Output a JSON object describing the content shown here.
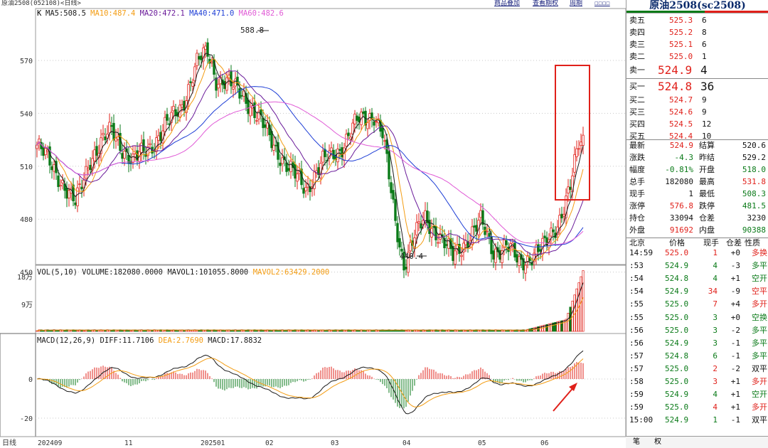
{
  "window": {
    "title": "原油2508(052108)<日线>",
    "links": [
      "商品叠加",
      "查看期权",
      "周期",
      "☐☐☐☐"
    ]
  },
  "main_chart": {
    "k_label": "K",
    "ma_legend": [
      {
        "text": "MA5:508.5",
        "color": "#1a1a1a"
      },
      {
        "text": "MA10:487.4",
        "color": "#f39c12"
      },
      {
        "text": "MA20:472.1",
        "color": "#6a1b9a"
      },
      {
        "text": "MA40:471.0",
        "color": "#1f3fd6"
      },
      {
        "text": "MA60:482.6",
        "color": "#e05ad6"
      }
    ],
    "y_ticks": [
      "570",
      "540",
      "510",
      "480",
      "450"
    ],
    "high_label": "588.8",
    "low_label": "440.4",
    "x_labels": [
      "202409",
      "11",
      "202501",
      "02",
      "03",
      "04",
      "05",
      "06"
    ],
    "period_label": "日线"
  },
  "volume_chart": {
    "legend": [
      {
        "text": "VOL(5,10)",
        "color": "#1a1a1a"
      },
      {
        "text": "VOLUME:182080.0000",
        "color": "#1a1a1a"
      },
      {
        "text": "MAVOL1:101055.8000",
        "color": "#1a1a1a"
      },
      {
        "text": "MAVOL2:63429.2000",
        "color": "#f39c12"
      }
    ],
    "y_ticks": [
      "18万",
      "9万"
    ]
  },
  "macd_chart": {
    "legend": [
      {
        "text": "MACD(12,26,9)",
        "color": "#1a1a1a"
      },
      {
        "text": "DIFF:11.7106",
        "color": "#1a1a1a"
      },
      {
        "text": "DEA:2.7690",
        "color": "#f39c12"
      },
      {
        "text": "MACD:17.8832",
        "color": "#1a1a1a"
      }
    ],
    "y_ticks": [
      "0",
      "-20"
    ]
  },
  "quote": {
    "title": "原油2508(sc2508)",
    "asks": [
      {
        "label": "卖五",
        "price": "525.3",
        "vol": "6"
      },
      {
        "label": "卖四",
        "price": "525.2",
        "vol": "8"
      },
      {
        "label": "卖三",
        "price": "525.1",
        "vol": "6"
      },
      {
        "label": "卖二",
        "price": "525.0",
        "vol": "1"
      },
      {
        "label": "卖一",
        "price": "524.9",
        "vol": "4"
      }
    ],
    "bids": [
      {
        "label": "买一",
        "price": "524.8",
        "vol": "36"
      },
      {
        "label": "买二",
        "price": "524.7",
        "vol": "9"
      },
      {
        "label": "买三",
        "price": "524.6",
        "vol": "9"
      },
      {
        "label": "买四",
        "price": "524.5",
        "vol": "12"
      },
      {
        "label": "买五",
        "price": "524.4",
        "vol": "10"
      }
    ],
    "stats": [
      {
        "l1": "最新",
        "v1": "524.9",
        "c1": "red",
        "l2": "结算",
        "v2": "520.6",
        "c2": "blk"
      },
      {
        "l1": "涨跌",
        "v1": "-4.3",
        "c1": "grn",
        "l2": "昨结",
        "v2": "529.2",
        "c2": "blk"
      },
      {
        "l1": "幅度",
        "v1": "-0.81%",
        "c1": "grn",
        "l2": "开盘",
        "v2": "518.0",
        "c2": "grn"
      },
      {
        "l1": "总手",
        "v1": "182080",
        "c1": "blk",
        "l2": "最高",
        "v2": "531.8",
        "c2": "red"
      },
      {
        "l1": "现手",
        "v1": "1",
        "c1": "blk",
        "l2": "最低",
        "v2": "508.3",
        "c2": "grn"
      },
      {
        "l1": "涨停",
        "v1": "576.8",
        "c1": "red",
        "l2": "跌停",
        "v2": "481.5",
        "c2": "grn"
      },
      {
        "l1": "持仓",
        "v1": "33094",
        "c1": "blk",
        "l2": "仓差",
        "v2": "3230",
        "c2": "blk"
      },
      {
        "l1": "外盘",
        "v1": "91692",
        "c1": "red",
        "l2": "内盘",
        "v2": "90388",
        "c2": "grn"
      }
    ],
    "ticks_header": [
      "北京",
      "价格",
      "现手",
      "仓差",
      "性质"
    ],
    "ticks": [
      {
        "t": "14:59",
        "p": "525.0",
        "pc": "red",
        "v": "1",
        "vc": "red",
        "d": "+0",
        "n": "多换",
        "nc": "red"
      },
      {
        "t": ":53",
        "p": "524.9",
        "pc": "grn",
        "v": "4",
        "vc": "grn",
        "d": "-3",
        "n": "多平",
        "nc": "grn"
      },
      {
        "t": ":54",
        "p": "524.8",
        "pc": "grn",
        "v": "4",
        "vc": "grn",
        "d": "+1",
        "n": "空开",
        "nc": "grn"
      },
      {
        "t": ":54",
        "p": "524.9",
        "pc": "grn",
        "v": "34",
        "vc": "red",
        "d": "-9",
        "n": "空平",
        "nc": "red"
      },
      {
        "t": ":55",
        "p": "525.0",
        "pc": "grn",
        "v": "7",
        "vc": "red",
        "d": "+4",
        "n": "多开",
        "nc": "red"
      },
      {
        "t": ":55",
        "p": "525.0",
        "pc": "grn",
        "v": "3",
        "vc": "grn",
        "d": "+0",
        "n": "空换",
        "nc": "grn"
      },
      {
        "t": ":56",
        "p": "525.0",
        "pc": "grn",
        "v": "3",
        "vc": "grn",
        "d": "-2",
        "n": "多平",
        "nc": "grn"
      },
      {
        "t": ":56",
        "p": "524.9",
        "pc": "grn",
        "v": "3",
        "vc": "grn",
        "d": "-1",
        "n": "多平",
        "nc": "grn"
      },
      {
        "t": ":57",
        "p": "524.8",
        "pc": "grn",
        "v": "6",
        "vc": "grn",
        "d": "-1",
        "n": "多平",
        "nc": "grn"
      },
      {
        "t": ":57",
        "p": "525.0",
        "pc": "grn",
        "v": "2",
        "vc": "red",
        "d": "-2",
        "n": "双平",
        "nc": "blk"
      },
      {
        "t": ":58",
        "p": "525.0",
        "pc": "grn",
        "v": "3",
        "vc": "red",
        "d": "+1",
        "n": "多开",
        "nc": "red"
      },
      {
        "t": ":59",
        "p": "524.9",
        "pc": "grn",
        "v": "4",
        "vc": "grn",
        "d": "+1",
        "n": "空开",
        "nc": "grn"
      },
      {
        "t": ":59",
        "p": "525.0",
        "pc": "grn",
        "v": "4",
        "vc": "red",
        "d": "+1",
        "n": "多开",
        "nc": "red"
      },
      {
        "t": "15:00",
        "p": "524.9",
        "pc": "grn",
        "v": "1",
        "vc": "grn",
        "d": "-1",
        "n": "双平",
        "nc": "blk"
      }
    ],
    "tabs": [
      "笔",
      "权"
    ]
  },
  "colors": {
    "up": "#e0201a",
    "down": "#0a7a18",
    "highlight": "#e0201a"
  }
}
